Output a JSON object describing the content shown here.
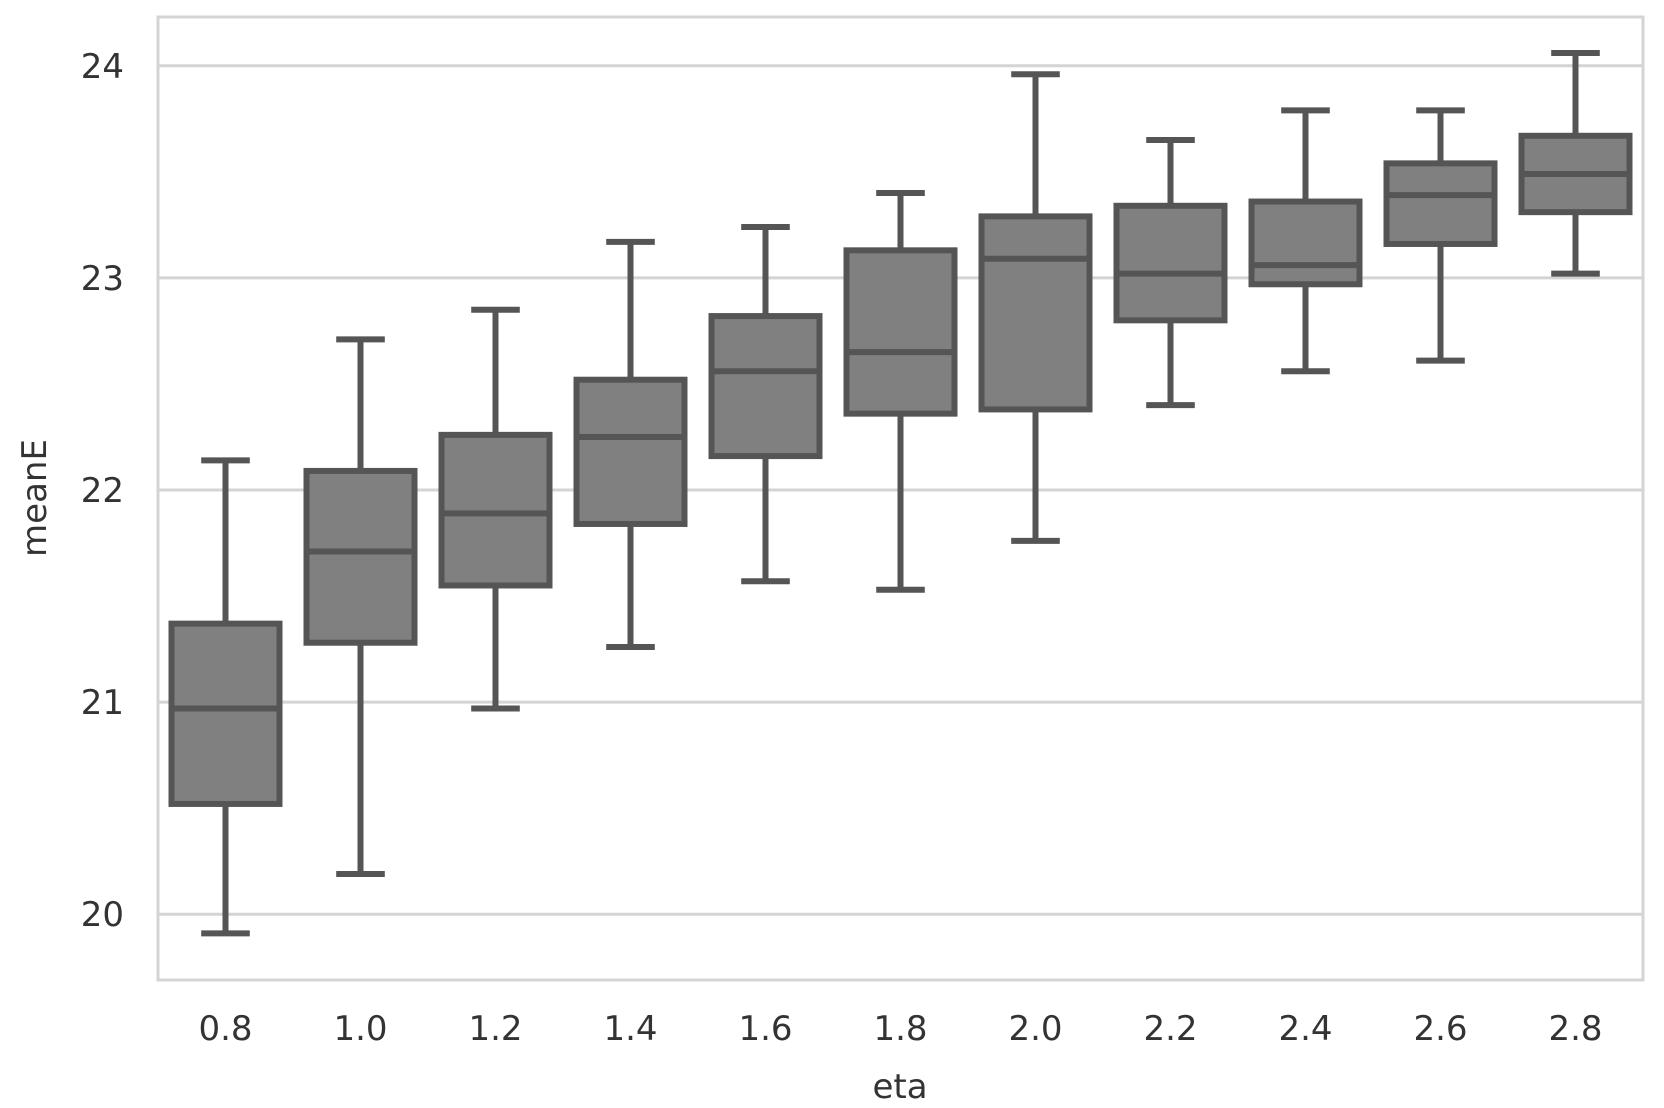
{
  "chart_data": {
    "type": "box",
    "title": "",
    "xlabel": "eta",
    "ylabel": "meanE",
    "ylim": [
      19.69,
      24.23
    ],
    "yticks": [
      20,
      21,
      22,
      23,
      24
    ],
    "ytick_labels": [
      "20",
      "21",
      "22",
      "23",
      "24"
    ],
    "grid": "horizontal",
    "legend": "none",
    "categories": [
      "0.8",
      "1.0",
      "1.2",
      "1.4",
      "1.6",
      "1.8",
      "2.0",
      "2.2",
      "2.4",
      "2.6",
      "2.8"
    ],
    "boxes": [
      {
        "category": "0.8",
        "whisker_low": 19.91,
        "q1": 20.52,
        "median": 20.97,
        "q3": 21.37,
        "whisker_high": 22.14
      },
      {
        "category": "1.0",
        "whisker_low": 20.19,
        "q1": 21.28,
        "median": 21.71,
        "q3": 22.09,
        "whisker_high": 22.71
      },
      {
        "category": "1.2",
        "whisker_low": 20.97,
        "q1": 21.55,
        "median": 21.89,
        "q3": 22.26,
        "whisker_high": 22.85
      },
      {
        "category": "1.4",
        "whisker_low": 21.26,
        "q1": 21.84,
        "median": 22.25,
        "q3": 22.52,
        "whisker_high": 23.17
      },
      {
        "category": "1.6",
        "whisker_low": 21.57,
        "q1": 22.16,
        "median": 22.56,
        "q3": 22.82,
        "whisker_high": 23.24
      },
      {
        "category": "1.8",
        "whisker_low": 21.53,
        "q1": 22.36,
        "median": 22.65,
        "q3": 23.13,
        "whisker_high": 23.4
      },
      {
        "category": "2.0",
        "whisker_low": 21.76,
        "q1": 22.38,
        "median": 23.09,
        "q3": 23.29,
        "whisker_high": 23.96
      },
      {
        "category": "2.2",
        "whisker_low": 22.4,
        "q1": 22.8,
        "median": 23.02,
        "q3": 23.34,
        "whisker_high": 23.65
      },
      {
        "category": "2.4",
        "whisker_low": 22.56,
        "q1": 22.97,
        "median": 23.06,
        "q3": 23.36,
        "whisker_high": 23.79
      },
      {
        "category": "2.6",
        "whisker_low": 22.61,
        "q1": 23.16,
        "median": 23.39,
        "q3": 23.54,
        "whisker_high": 23.79
      },
      {
        "category": "2.8",
        "whisker_low": 23.02,
        "q1": 23.31,
        "median": 23.49,
        "q3": 23.67,
        "whisker_high": 24.06
      }
    ],
    "colors": {
      "box_fill": "#808080",
      "box_edge": "#555555",
      "grid": "#d4d4d4",
      "frame": "#d4d4d4",
      "text": "#333333"
    }
  }
}
